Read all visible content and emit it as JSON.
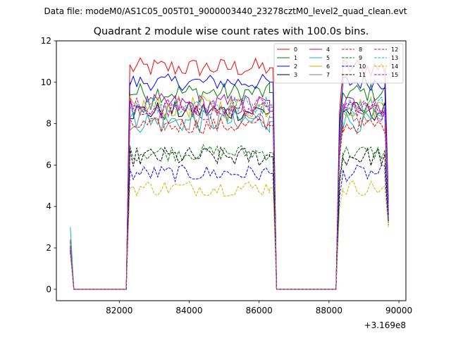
{
  "figure": {
    "suptitle": "Data file: modeM0/AS1C05_005T01_9000003440_23278cztM0_level2_quad_clean.evt",
    "x_offset_label": "+3.169e8"
  },
  "chart_data": {
    "type": "line",
    "title": "Quadrant 2 module wise count rates with 100.0s bins.",
    "xlabel": "",
    "ylabel": "",
    "xlim": [
      80200,
      90200
    ],
    "ylim": [
      -0.55,
      12.0
    ],
    "xticks": [
      82000,
      84000,
      86000,
      88000,
      90000
    ],
    "xtick_labels": [
      "82000",
      "84000",
      "86000",
      "88000",
      "90000"
    ],
    "yticks": [
      0,
      2,
      4,
      6,
      8,
      10,
      12
    ],
    "ytick_labels": [
      "0",
      "2",
      "4",
      "6",
      "8",
      "10",
      "12"
    ],
    "x_offset": 316900000,
    "legend_location": "top-right",
    "segments": [
      {
        "start": 80600,
        "end": 80700,
        "step": 100,
        "kind": "edge"
      },
      {
        "start": 80700,
        "end": 82200,
        "step": 100,
        "kind": "gap"
      },
      {
        "start": 82200,
        "end": 82300,
        "step": 100,
        "kind": "rise"
      },
      {
        "start": 82300,
        "end": 86300,
        "step": 100,
        "kind": "plateau"
      },
      {
        "start": 86300,
        "end": 86500,
        "step": 100,
        "kind": "fall"
      },
      {
        "start": 86500,
        "end": 88200,
        "step": 100,
        "kind": "gap"
      },
      {
        "start": 88200,
        "end": 88400,
        "step": 100,
        "kind": "rise"
      },
      {
        "start": 88400,
        "end": 89600,
        "step": 100,
        "kind": "plateau"
      },
      {
        "start": 89600,
        "end": 89700,
        "step": 100,
        "kind": "fall"
      }
    ],
    "series": [
      {
        "name": "0",
        "color": "#ff0000",
        "dash": "solid",
        "start_value": 2.4,
        "level": 10.7,
        "noise": 0.3,
        "end_value": 4.2
      },
      {
        "name": "1",
        "color": "#008000",
        "dash": "solid",
        "start_value": 2.0,
        "level": 9.5,
        "noise": 0.3,
        "end_value": 3.8
      },
      {
        "name": "2",
        "color": "#0000ff",
        "dash": "solid",
        "start_value": 2.2,
        "level": 10.0,
        "noise": 0.25,
        "end_value": 4.0
      },
      {
        "name": "3",
        "color": "#000000",
        "dash": "solid",
        "start_value": 2.1,
        "level": 8.6,
        "noise": 0.3,
        "end_value": 3.6
      },
      {
        "name": "4",
        "color": "#bf00bf",
        "dash": "solid",
        "start_value": 2.3,
        "level": 8.9,
        "noise": 0.35,
        "end_value": 3.8
      },
      {
        "name": "5",
        "color": "#00bfbf",
        "dash": "solid",
        "start_value": 3.0,
        "level": 8.1,
        "noise": 0.35,
        "end_value": 3.6
      },
      {
        "name": "6",
        "color": "#bfbf00",
        "dash": "solid",
        "start_value": 2.2,
        "level": 8.8,
        "noise": 0.35,
        "end_value": 3.7
      },
      {
        "name": "7",
        "color": "#808080",
        "dash": "solid",
        "start_value": 2.1,
        "level": 8.3,
        "noise": 0.4,
        "end_value": 3.6
      },
      {
        "name": "8",
        "color": "#ff0000",
        "dash": "dashed",
        "start_value": 1.9,
        "level": 7.9,
        "noise": 0.25,
        "end_value": 3.4
      },
      {
        "name": "9",
        "color": "#008000",
        "dash": "dashed",
        "start_value": 1.8,
        "level": 6.6,
        "noise": 0.25,
        "end_value": 3.2
      },
      {
        "name": "10",
        "color": "#0000ff",
        "dash": "dashed",
        "start_value": 1.8,
        "level": 5.6,
        "noise": 0.25,
        "end_value": 3.1
      },
      {
        "name": "11",
        "color": "#000000",
        "dash": "dashed",
        "start_value": 1.9,
        "level": 6.4,
        "noise": 0.3,
        "end_value": 3.3
      },
      {
        "name": "12",
        "color": "#bf00bf",
        "dash": "dashed",
        "start_value": 2.1,
        "level": 8.6,
        "noise": 0.3,
        "end_value": 3.5
      },
      {
        "name": "13",
        "color": "#00bfbf",
        "dash": "dashed",
        "start_value": 2.0,
        "level": 8.9,
        "noise": 0.3,
        "end_value": 3.5
      },
      {
        "name": "14",
        "color": "#bfbf00",
        "dash": "dashed",
        "start_value": 1.7,
        "level": 4.9,
        "noise": 0.25,
        "end_value": 3.0
      },
      {
        "name": "15",
        "color": "#bf00bf",
        "dash": "dashed",
        "start_value": 2.0,
        "level": 8.8,
        "noise": 0.3,
        "end_value": 3.4
      }
    ]
  }
}
